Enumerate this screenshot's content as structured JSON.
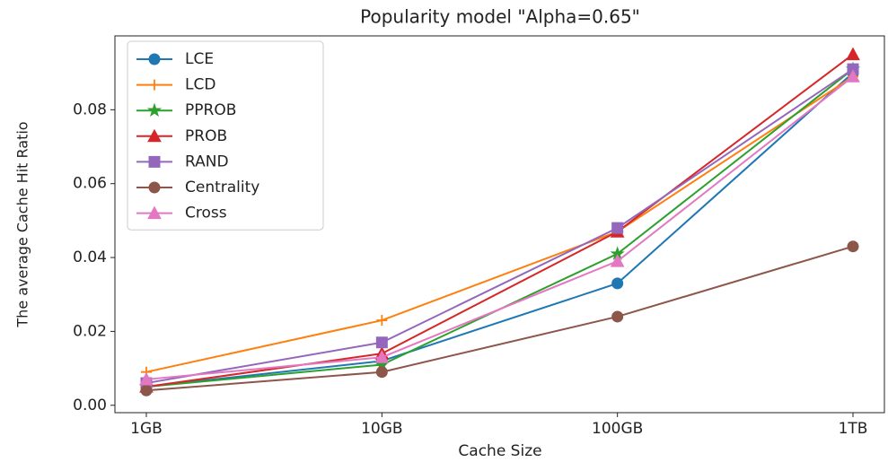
{
  "chart_data": {
    "type": "line",
    "title": "Popularity model \"Alpha=0.65\"",
    "x_label": "Cache Size",
    "y_label": "The average Cache Hit Ratio",
    "categories": [
      "1GB",
      "10GB",
      "100GB",
      "1TB"
    ],
    "ylim": [
      -0.002,
      0.1
    ],
    "yticks": [
      {
        "value": 0,
        "label": "0.00"
      },
      {
        "value": 0.02,
        "label": "0.02"
      },
      {
        "value": 0.04,
        "label": "0.04"
      },
      {
        "value": 0.06,
        "label": "0.06"
      },
      {
        "value": 0.08,
        "label": "0.08"
      }
    ],
    "legend": "upper left",
    "series": [
      {
        "name": "LCE",
        "color": "#1f77b4",
        "marker": "circle",
        "values": [
          0.005,
          0.012,
          0.033,
          0.09
        ]
      },
      {
        "name": "LCD",
        "color": "#ff7f0e",
        "marker": "plus",
        "values": [
          0.009,
          0.023,
          0.047,
          0.089
        ]
      },
      {
        "name": "PPROB",
        "color": "#2ca02c",
        "marker": "star",
        "values": [
          0.005,
          0.011,
          0.041,
          0.091
        ]
      },
      {
        "name": "PROB",
        "color": "#d62728",
        "marker": "triangle",
        "values": [
          0.005,
          0.014,
          0.047,
          0.095
        ]
      },
      {
        "name": "RAND",
        "color": "#9467bd",
        "marker": "square",
        "values": [
          0.006,
          0.017,
          0.048,
          0.091
        ]
      },
      {
        "name": "Centrality",
        "color": "#8c564b",
        "marker": "circle",
        "values": [
          0.004,
          0.009,
          0.024,
          0.043
        ]
      },
      {
        "name": "Cross",
        "color": "#e377c2",
        "marker": "triangle",
        "values": [
          0.007,
          0.013,
          0.039,
          0.089
        ]
      }
    ]
  }
}
